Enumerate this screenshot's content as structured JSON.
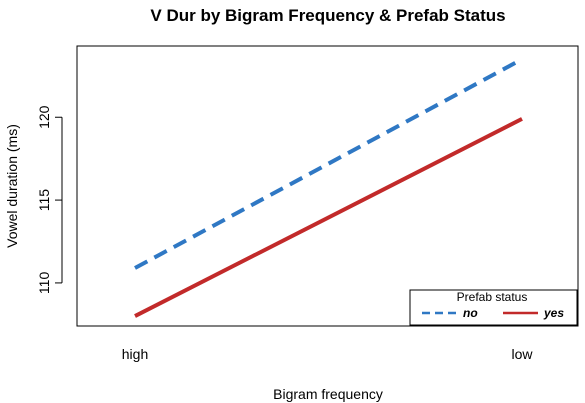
{
  "chart_data": {
    "type": "line",
    "title": "V Dur by Bigram Frequency & Prefab Status",
    "xlabel": "Bigram frequency",
    "ylabel": "Vowel duration (ms)",
    "categories": [
      "high",
      "low"
    ],
    "yticks": [
      110,
      115,
      120
    ],
    "ylim": [
      107.4,
      124.3
    ],
    "grid": false,
    "legend": {
      "title": "Prefab status",
      "position": "bottom-right"
    },
    "series": [
      {
        "name": "no",
        "values": [
          110.9,
          123.5
        ],
        "color": "#2f78c4",
        "line_style": "dashed"
      },
      {
        "name": "yes",
        "values": [
          108.0,
          119.9
        ],
        "color": "#c22a2a",
        "line_style": "solid"
      }
    ]
  }
}
